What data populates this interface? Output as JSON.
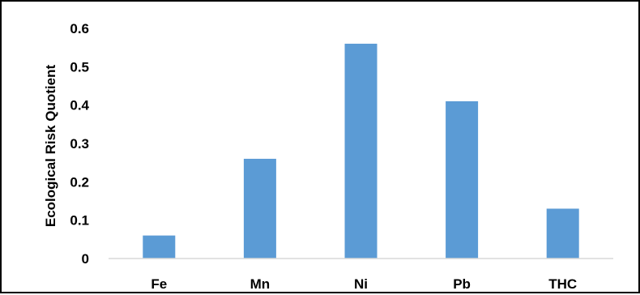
{
  "chart_data": {
    "type": "bar",
    "title": "",
    "xlabel": "",
    "ylabel": "Ecological Risk Quotient",
    "categories": [
      "Fe",
      "Mn",
      "Ni",
      "Pb",
      "THC"
    ],
    "values": [
      0.06,
      0.26,
      0.56,
      0.41,
      0.13
    ],
    "ylim": [
      0,
      0.6
    ],
    "yticks": [
      0,
      0.1,
      0.2,
      0.3,
      0.4,
      0.5,
      0.6
    ],
    "ytick_labels": [
      "0",
      "0.1",
      "0.2",
      "0.3",
      "0.4",
      "0.5",
      "0.6"
    ],
    "grid": false,
    "legend": "none",
    "bar_color": "#5B9BD5",
    "axis_color": "#D9D9D9"
  }
}
